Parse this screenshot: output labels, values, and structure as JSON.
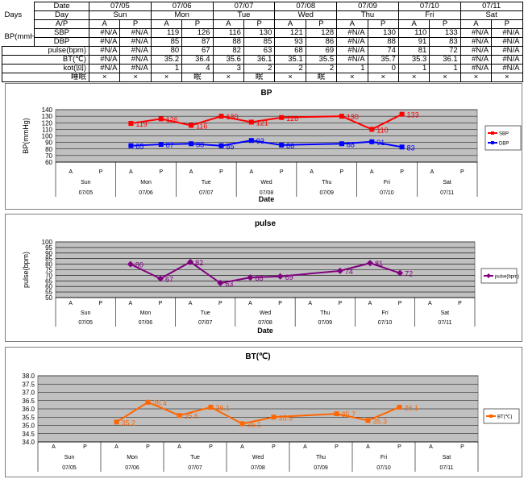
{
  "table": {
    "days_label": "Days",
    "bp_label": "BP(mmHg)",
    "row_labels": {
      "date": "Date",
      "day": "Day",
      "ap": "A/P",
      "sbp": "SBP",
      "dbp": "DBP",
      "pulse": "pulse(bpm)",
      "bt": "BT(℃)",
      "kot": "kot(回)",
      "sleep": "睡眠"
    },
    "dates": [
      "07/05",
      "07/06",
      "07/07",
      "07/08",
      "07/09",
      "07/10",
      "07/11"
    ],
    "days": [
      "Sun",
      "Mon",
      "Tue",
      "Wed",
      "Thu",
      "Fri",
      "Sat"
    ],
    "ap": [
      "A",
      "P",
      "A",
      "P",
      "A",
      "P",
      "A",
      "P",
      "A",
      "P",
      "A",
      "P",
      "A",
      "P"
    ],
    "sbp": [
      "#N/A",
      "#N/A",
      "119",
      "126",
      "116",
      "130",
      "121",
      "128",
      "#N/A",
      "130",
      "110",
      "133",
      "#N/A",
      "#N/A"
    ],
    "dbp": [
      "#N/A",
      "#N/A",
      "85",
      "87",
      "88",
      "85",
      "93",
      "86",
      "#N/A",
      "88",
      "91",
      "83",
      "#N/A",
      "#N/A"
    ],
    "pulse": [
      "#N/A",
      "#N/A",
      "80",
      "67",
      "82",
      "63",
      "68",
      "69",
      "#N/A",
      "74",
      "81",
      "72",
      "#N/A",
      "#N/A"
    ],
    "bt": [
      "#N/A",
      "#N/A",
      "35.2",
      "36.4",
      "35.6",
      "36.1",
      "35.1",
      "35.5",
      "#N/A",
      "35.7",
      "35.3",
      "36.1",
      "#N/A",
      "#N/A"
    ],
    "kot": [
      "#N/A",
      "#N/A",
      "1",
      "4",
      "3",
      "2",
      "2",
      "2",
      "1",
      "0",
      "1",
      "1",
      "#N/A",
      "#N/A"
    ],
    "sleep": [
      "×",
      "×",
      "×",
      "眠",
      "×",
      "眠",
      "×",
      "眠",
      "×",
      "×",
      "×",
      "×",
      "×",
      "×"
    ]
  },
  "chart_data": [
    {
      "type": "line",
      "title": "BP",
      "xlabel": "Date",
      "ylabel": "BP(mmHg)",
      "ylim": [
        60,
        140
      ],
      "yticks": [
        60,
        70,
        80,
        90,
        100,
        110,
        120,
        130,
        140
      ],
      "x_ap": [
        "A",
        "P",
        "A",
        "P",
        "A",
        "P",
        "A",
        "P",
        "A",
        "P",
        "A",
        "P",
        "A",
        "P"
      ],
      "x_days": [
        "Sun",
        "Mon",
        "Tue",
        "Wed",
        "Thu",
        "Fri",
        "Sat"
      ],
      "x_dates": [
        "07/05",
        "07/06",
        "07/07",
        "07/08",
        "07/09",
        "07/10",
        "07/11"
      ],
      "grid": true,
      "legend": "right",
      "series": [
        {
          "name": "SBP",
          "color": "#ff0000",
          "marker": "square",
          "values": [
            null,
            null,
            119,
            126,
            116,
            130,
            121,
            128,
            null,
            130,
            110,
            133,
            null,
            null
          ]
        },
        {
          "name": "DBP",
          "color": "#0000ff",
          "marker": "square",
          "values": [
            null,
            null,
            85,
            87,
            88,
            85,
            93,
            86,
            null,
            88,
            91,
            83,
            null,
            null
          ]
        }
      ]
    },
    {
      "type": "line",
      "title": "pulse",
      "xlabel": "Date",
      "ylabel": "pulse(bpm)",
      "ylim": [
        50,
        100
      ],
      "yticks": [
        50,
        55,
        60,
        65,
        70,
        75,
        80,
        85,
        90,
        95,
        100
      ],
      "x_ap": [
        "A",
        "P",
        "A",
        "P",
        "A",
        "P",
        "A",
        "P",
        "A",
        "P",
        "A",
        "P",
        "A",
        "P"
      ],
      "x_days": [
        "Sun",
        "Mon",
        "Tue",
        "Wed",
        "Thu",
        "Fri",
        "Sat"
      ],
      "x_dates": [
        "07/05",
        "07/06",
        "07/07",
        "07/08",
        "07/09",
        "07/10",
        "07/11"
      ],
      "grid": true,
      "legend": "right",
      "series": [
        {
          "name": "pulse(bpm)",
          "color": "#800080",
          "marker": "diamond",
          "values": [
            null,
            null,
            80,
            67,
            82,
            63,
            68,
            69,
            null,
            74,
            81,
            72,
            null,
            null
          ]
        }
      ]
    },
    {
      "type": "line",
      "title": "BT(℃)",
      "xlabel": "",
      "ylabel": "",
      "ylim": [
        34.0,
        38.0
      ],
      "yticks": [
        "34.0",
        "34.5",
        "35.0",
        "35.5",
        "36.0",
        "36.5",
        "37.0",
        "37.5",
        "38.0"
      ],
      "x_ap": [
        "A",
        "P",
        "A",
        "P",
        "A",
        "P",
        "A",
        "P",
        "A",
        "P",
        "A",
        "P",
        "A",
        "P"
      ],
      "x_days": [
        "Sun",
        "Mon",
        "Tue",
        "Wed",
        "Thu",
        "Fri",
        "Sat"
      ],
      "x_dates": [
        "07/05",
        "07/06",
        "07/07",
        "07/08",
        "07/09",
        "07/10",
        "07/11"
      ],
      "grid": true,
      "legend": "right",
      "series": [
        {
          "name": "BT(℃)",
          "color": "#ff6600",
          "marker": "square",
          "values": [
            null,
            null,
            35.2,
            36.4,
            35.6,
            36.1,
            35.1,
            35.5,
            null,
            35.7,
            35.3,
            36.1,
            null,
            null
          ]
        }
      ]
    }
  ]
}
